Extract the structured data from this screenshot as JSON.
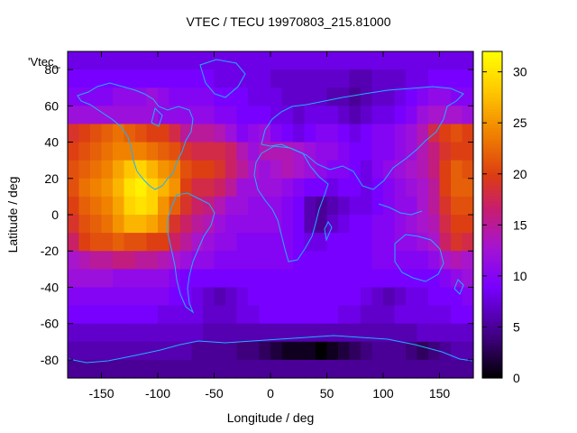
{
  "chart_data": {
    "type": "heatmap",
    "title": "VTEC / TECU 19970803_215.81000",
    "xlabel": "Longitude / deg",
    "ylabel": "Latitude / deg",
    "series_label": "'Vtec_",
    "xlim": [
      -180,
      180
    ],
    "ylim": [
      -90,
      90
    ],
    "x_ticks": [
      -150,
      -100,
      -50,
      0,
      50,
      100,
      150
    ],
    "y_ticks": [
      -80,
      -60,
      -40,
      -20,
      0,
      20,
      40,
      60,
      80
    ],
    "colorbar": {
      "range": [
        0,
        32
      ],
      "ticks": [
        0,
        5,
        10,
        15,
        20,
        25,
        30
      ]
    },
    "grid": false,
    "value_description": "Vertical total electron content; global grid, 10 deg resolution, rows from lat 85 to -85, columns from lon -175 to 175",
    "lons": [
      -175,
      -165,
      -155,
      -145,
      -135,
      -125,
      -115,
      -105,
      -95,
      -85,
      -75,
      -65,
      -55,
      -45,
      -35,
      -25,
      -15,
      -5,
      5,
      15,
      25,
      35,
      45,
      55,
      65,
      75,
      85,
      95,
      105,
      115,
      125,
      135,
      145,
      155,
      165,
      175
    ],
    "lats": [
      85,
      75,
      65,
      55,
      45,
      35,
      25,
      15,
      5,
      -5,
      -15,
      -25,
      -35,
      -45,
      -55,
      -65,
      -75,
      -85
    ],
    "values": [
      [
        8,
        8,
        8,
        8,
        8,
        8,
        8,
        8,
        8,
        8,
        8,
        8,
        8,
        8,
        8,
        8,
        8,
        8,
        8,
        8,
        8,
        8,
        8,
        8,
        8,
        8,
        8,
        8,
        8,
        8,
        8,
        8,
        8,
        8,
        8,
        8
      ],
      [
        9,
        9,
        9,
        9,
        9,
        9,
        9,
        9,
        9,
        9,
        9,
        9,
        9,
        8,
        8,
        8,
        8,
        8,
        7,
        7,
        7,
        7,
        7,
        7,
        7,
        6,
        6,
        7,
        7,
        7,
        8,
        8,
        9,
        9,
        9,
        9
      ],
      [
        10,
        10,
        10,
        10,
        11,
        11,
        11,
        12,
        11,
        10,
        10,
        10,
        10,
        9,
        9,
        9,
        8,
        8,
        8,
        7,
        7,
        7,
        7,
        6,
        6,
        5,
        6,
        7,
        7,
        8,
        9,
        10,
        11,
        11,
        10,
        10
      ],
      [
        12,
        12,
        12,
        12,
        12,
        12,
        12,
        12,
        11,
        11,
        11,
        11,
        11,
        10,
        10,
        9,
        9,
        9,
        8,
        8,
        7,
        8,
        8,
        8,
        7,
        6,
        7,
        8,
        8,
        9,
        10,
        12,
        13,
        13,
        13,
        12
      ],
      [
        19,
        20,
        21,
        22,
        23,
        22,
        21,
        20,
        20,
        18,
        15,
        15,
        15,
        14,
        12,
        10,
        11,
        12,
        10,
        9,
        8,
        9,
        10,
        10,
        9,
        8,
        9,
        10,
        10,
        11,
        12,
        14,
        18,
        20,
        21,
        20
      ],
      [
        20,
        21,
        22,
        23,
        24,
        24,
        24,
        23,
        22,
        21,
        19,
        18,
        18,
        18,
        17,
        14,
        12,
        14,
        14,
        14,
        13,
        12,
        11,
        11,
        10,
        9,
        9,
        10,
        10,
        11,
        12,
        14,
        16,
        19,
        20,
        20
      ],
      [
        21,
        22,
        23,
        24,
        26,
        28,
        29,
        27,
        25,
        24,
        21,
        20,
        20,
        19,
        17,
        15,
        13,
        12,
        13,
        14,
        13,
        12,
        11,
        10,
        10,
        9,
        8,
        10,
        11,
        12,
        13,
        14,
        16,
        20,
        22,
        21
      ],
      [
        21,
        23,
        24,
        25,
        27,
        30,
        31,
        29,
        27,
        25,
        20,
        18,
        18,
        17,
        15,
        12,
        12,
        12,
        12,
        11,
        10,
        9,
        9,
        8,
        9,
        9,
        8,
        9,
        10,
        11,
        12,
        13,
        15,
        20,
        22,
        22
      ],
      [
        20,
        22,
        23,
        24,
        26,
        29,
        30,
        29,
        25,
        22,
        19,
        17,
        16,
        14,
        12,
        12,
        11,
        11,
        11,
        10,
        9,
        6,
        5,
        6,
        7,
        8,
        8,
        9,
        10,
        11,
        11,
        13,
        15,
        19,
        21,
        21
      ],
      [
        19,
        21,
        22,
        23,
        25,
        27,
        27,
        26,
        24,
        19,
        17,
        15,
        14,
        12,
        11,
        11,
        11,
        11,
        11,
        10,
        9,
        6,
        5,
        7,
        8,
        9,
        9,
        10,
        10,
        11,
        12,
        13,
        14,
        18,
        20,
        20
      ],
      [
        17,
        20,
        21,
        21,
        22,
        21,
        21,
        20,
        20,
        17,
        15,
        13,
        12,
        11,
        11,
        10,
        10,
        10,
        10,
        10,
        9,
        8,
        8,
        9,
        9,
        9,
        9,
        10,
        10,
        11,
        11,
        12,
        13,
        17,
        19,
        18
      ],
      [
        13,
        14,
        15,
        15,
        16,
        16,
        15,
        15,
        14,
        13,
        12,
        11,
        11,
        10,
        10,
        10,
        10,
        10,
        10,
        10,
        9,
        9,
        9,
        9,
        9,
        9,
        9,
        10,
        10,
        10,
        10,
        10,
        11,
        13,
        14,
        13
      ],
      [
        12,
        12,
        12,
        12,
        11,
        11,
        11,
        11,
        11,
        10,
        9,
        9,
        9,
        9,
        9,
        9,
        9,
        9,
        9,
        9,
        9,
        9,
        9,
        9,
        9,
        9,
        9,
        9,
        9,
        9,
        9,
        9,
        9,
        10,
        11,
        12
      ],
      [
        10,
        10,
        10,
        10,
        10,
        10,
        10,
        10,
        10,
        9,
        9,
        8,
        7,
        6,
        7,
        8,
        9,
        9,
        9,
        9,
        9,
        9,
        9,
        9,
        9,
        9,
        8,
        7,
        6,
        7,
        8,
        8,
        9,
        9,
        9,
        10
      ],
      [
        9,
        9,
        9,
        9,
        9,
        9,
        9,
        9,
        8,
        8,
        8,
        8,
        7,
        7,
        7,
        8,
        8,
        9,
        9,
        9,
        9,
        9,
        9,
        9,
        8,
        8,
        7,
        7,
        7,
        8,
        8,
        8,
        8,
        8,
        9,
        9
      ],
      [
        7,
        7,
        7,
        7,
        7,
        7,
        7,
        7,
        7,
        7,
        7,
        7,
        6,
        6,
        6,
        6,
        6,
        6,
        6,
        6,
        6,
        6,
        6,
        6,
        6,
        6,
        6,
        6,
        6,
        6,
        6,
        7,
        7,
        7,
        7,
        7
      ],
      [
        6,
        6,
        6,
        6,
        6,
        6,
        6,
        6,
        6,
        6,
        6,
        5,
        5,
        5,
        5,
        4,
        4,
        3,
        2,
        1,
        1,
        1,
        0,
        1,
        2,
        3,
        4,
        5,
        5,
        5,
        4,
        3,
        4,
        5,
        6,
        6
      ],
      [
        5,
        5,
        5,
        5,
        5,
        5,
        5,
        5,
        5,
        5,
        5,
        5,
        5,
        5,
        5,
        5,
        5,
        5,
        5,
        5,
        5,
        5,
        5,
        5,
        5,
        5,
        5,
        5,
        5,
        5,
        5,
        5,
        5,
        5,
        5,
        5
      ]
    ]
  }
}
